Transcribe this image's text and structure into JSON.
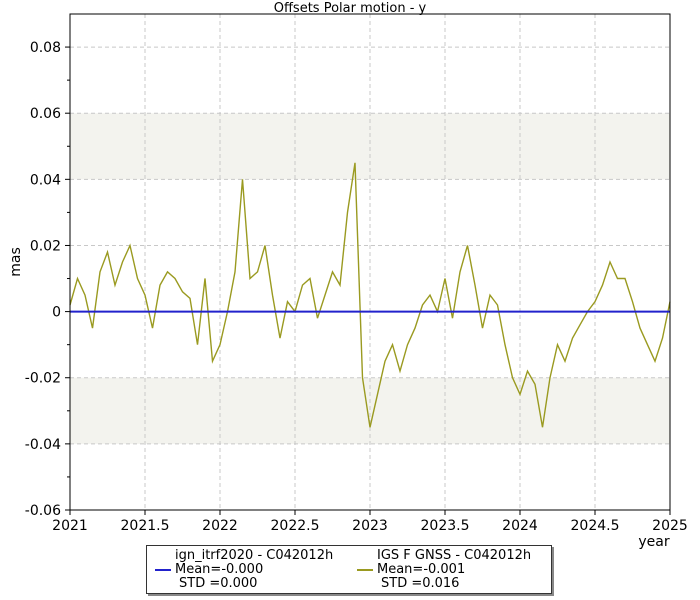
{
  "chart_data": {
    "type": "line",
    "title": "Offsets Polar motion - y",
    "xlabel": "year",
    "ylabel": "mas",
    "xlim": [
      2021,
      2025
    ],
    "ylim": [
      -0.06,
      0.09
    ],
    "xticks": [
      "2021",
      "2021.5",
      "2022",
      "2022.5",
      "2023",
      "2023.5",
      "2024",
      "2024.5",
      "2025"
    ],
    "yticks": [
      "-0.06",
      "-0.04",
      "-0.02",
      "0",
      "0.02",
      "0.04",
      "0.06",
      "0.08"
    ],
    "grid": true,
    "legend_position": "bottom",
    "colors": {
      "series1": "#2222cc",
      "series2": "#9a9a20",
      "band": "#f3f3ee",
      "grid": "#c8c8c8"
    },
    "series": [
      {
        "name": "ign_itrf2020 - C042012h",
        "mean_text": "Mean=-0.000",
        "std_text": "STD =0.000",
        "x": [
          2021.0,
          2025.0
        ],
        "y": [
          0.0,
          0.0
        ]
      },
      {
        "name": "IGS F GNSS - C042012h",
        "mean_text": "Mean=-0.001",
        "std_text": "STD =0.016",
        "x": [
          2021.0,
          2021.05,
          2021.1,
          2021.15,
          2021.2,
          2021.25,
          2021.3,
          2021.35,
          2021.4,
          2021.45,
          2021.5,
          2021.55,
          2021.6,
          2021.65,
          2021.7,
          2021.75,
          2021.8,
          2021.85,
          2021.9,
          2021.95,
          2022.0,
          2022.05,
          2022.1,
          2022.15,
          2022.2,
          2022.25,
          2022.3,
          2022.35,
          2022.4,
          2022.45,
          2022.5,
          2022.55,
          2022.6,
          2022.65,
          2022.7,
          2022.75,
          2022.8,
          2022.85,
          2022.9,
          2022.95,
          2023.0,
          2023.05,
          2023.1,
          2023.15,
          2023.2,
          2023.25,
          2023.3,
          2023.35,
          2023.4,
          2023.45,
          2023.5,
          2023.55,
          2023.6,
          2023.65,
          2023.7,
          2023.75,
          2023.8,
          2023.85,
          2023.9,
          2023.95,
          2024.0,
          2024.05,
          2024.1,
          2024.15,
          2024.2,
          2024.25,
          2024.3,
          2024.35,
          2024.4,
          2024.45,
          2024.5,
          2024.55,
          2024.6,
          2024.65,
          2024.7,
          2024.75,
          2024.8,
          2024.85,
          2024.9,
          2024.95,
          2025.0
        ],
        "y": [
          0.002,
          0.01,
          0.005,
          -0.005,
          0.012,
          0.018,
          0.008,
          0.015,
          0.02,
          0.01,
          0.005,
          -0.005,
          0.008,
          0.012,
          0.01,
          0.006,
          0.004,
          -0.01,
          0.01,
          -0.015,
          -0.01,
          0.0,
          0.012,
          0.04,
          0.01,
          0.012,
          0.02,
          0.005,
          -0.008,
          0.003,
          0.0,
          0.008,
          0.01,
          -0.002,
          0.005,
          0.012,
          0.008,
          0.03,
          0.045,
          -0.02,
          -0.035,
          -0.025,
          -0.015,
          -0.01,
          -0.018,
          -0.01,
          -0.005,
          0.002,
          0.005,
          0.0,
          0.01,
          -0.002,
          0.012,
          0.02,
          0.008,
          -0.005,
          0.005,
          0.002,
          -0.01,
          -0.02,
          -0.025,
          -0.018,
          -0.022,
          -0.035,
          -0.02,
          -0.01,
          -0.015,
          -0.008,
          -0.004,
          0.0,
          0.003,
          0.008,
          0.015,
          0.01,
          0.01,
          0.003,
          -0.005,
          -0.01,
          -0.015,
          -0.008,
          0.003
        ]
      }
    ]
  }
}
